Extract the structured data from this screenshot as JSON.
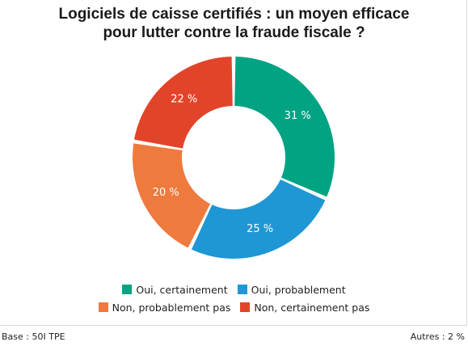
{
  "title_line1": "Logiciels de caisse certifiés : un moyen efficace",
  "title_line2": "pour lutter contre la fraude fiscale ?",
  "chart_data": {
    "type": "pie",
    "variant": "donut",
    "title": "Logiciels de caisse certifiés : un moyen efficace pour lutter contre la fraude fiscale ?",
    "slices": [
      {
        "name": "Oui, certainement",
        "value": 31,
        "label": "31 %",
        "color": "#00a382"
      },
      {
        "name": "Oui, probablement",
        "value": 25,
        "label": "25 %",
        "color": "#1f97d4"
      },
      {
        "name": "Non, probablement pas",
        "value": 20,
        "label": "20 %",
        "color": "#ef7a3d"
      },
      {
        "name": "Non, certainement pas",
        "value": 22,
        "label": "22 %",
        "color": "#e2442a"
      }
    ],
    "legend_placement": "bottom"
  },
  "footer": {
    "base": "Base : 50I TPE",
    "autres": "Autres : 2 %"
  }
}
